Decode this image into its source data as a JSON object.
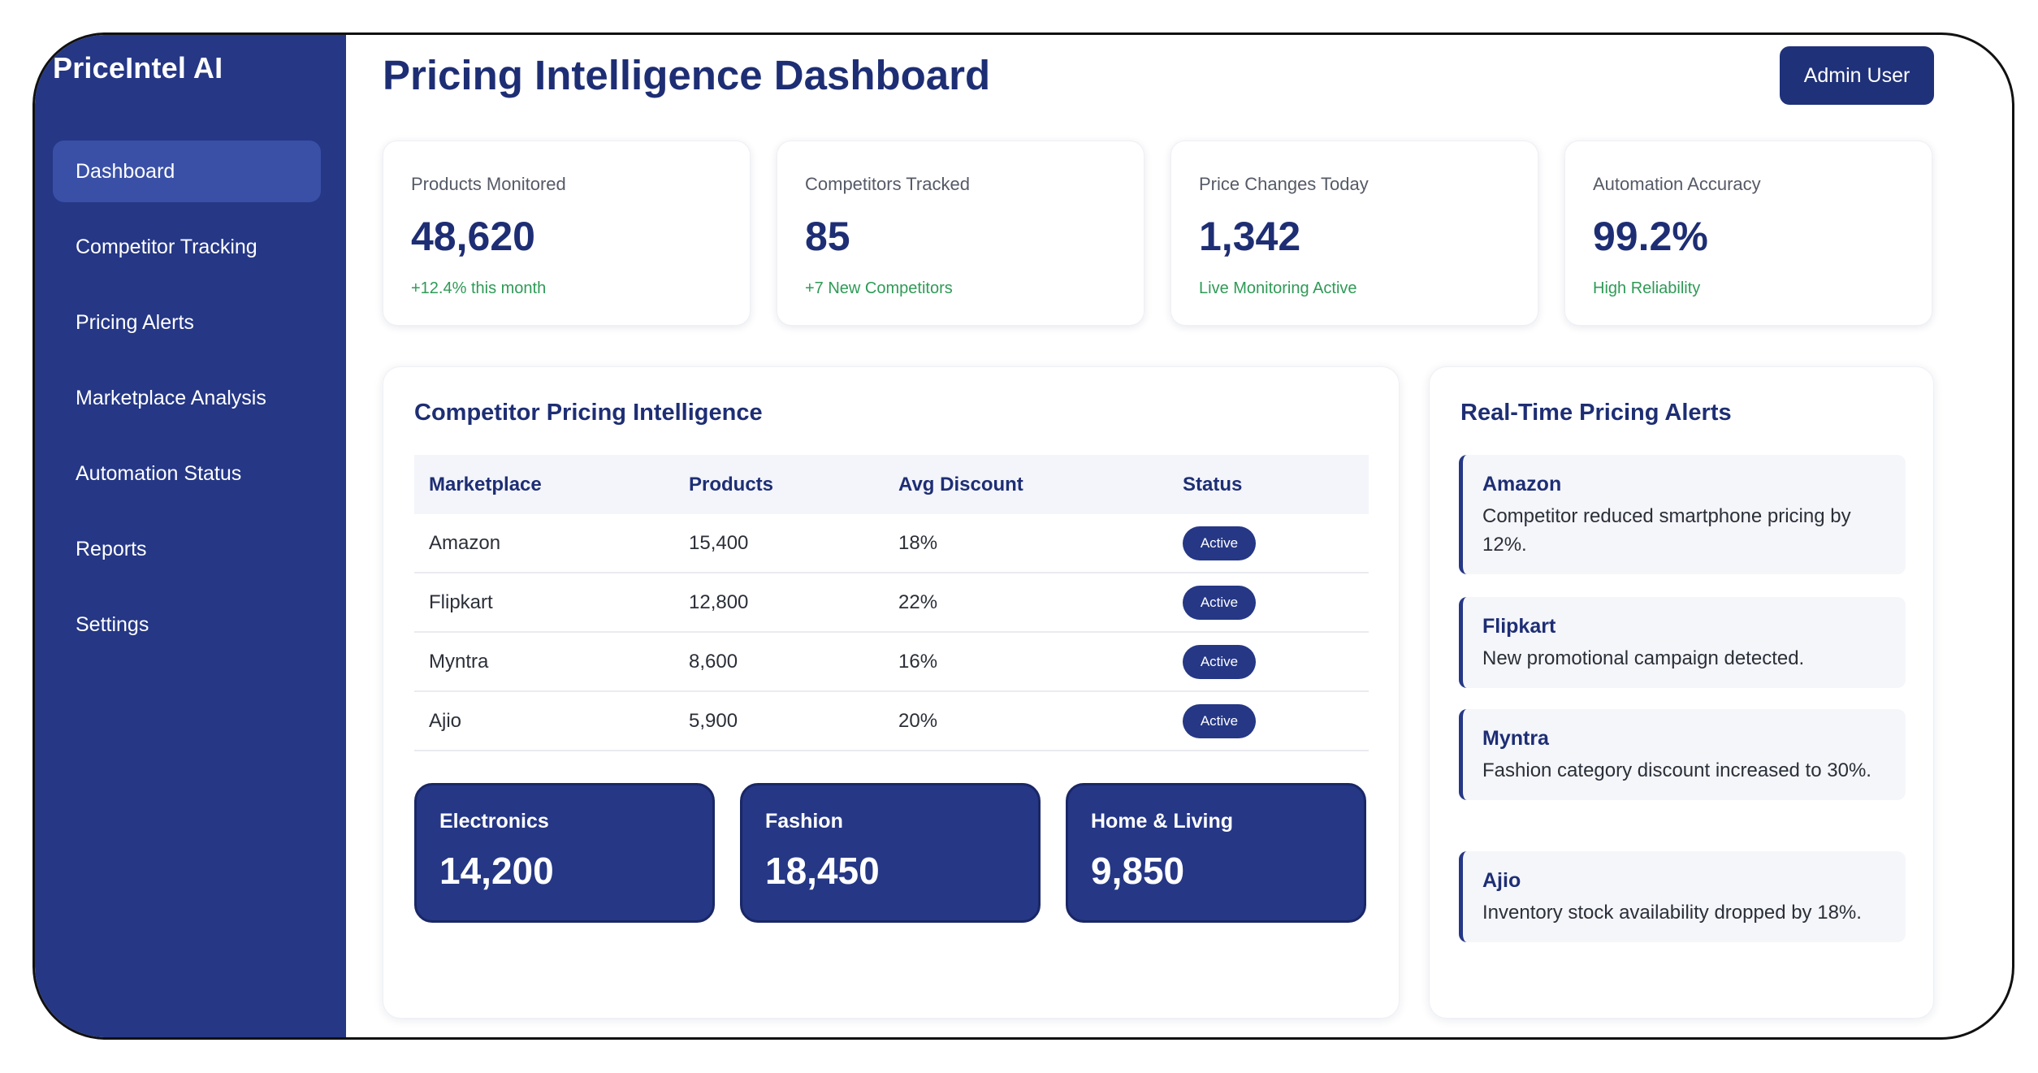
{
  "app": {
    "brand": "PriceIntel AI",
    "page_title": "Pricing Intelligence Dashboard",
    "user_button": "Admin User"
  },
  "sidebar": {
    "items": [
      {
        "label": "Dashboard",
        "active": true
      },
      {
        "label": "Competitor Tracking"
      },
      {
        "label": "Pricing Alerts"
      },
      {
        "label": "Marketplace Analysis"
      },
      {
        "label": "Automation Status"
      },
      {
        "label": "Reports"
      },
      {
        "label": "Settings"
      }
    ]
  },
  "stats": [
    {
      "label": "Products Monitored",
      "value": "48,620",
      "sub": "+12.4% this month"
    },
    {
      "label": "Competitors Tracked",
      "value": "85",
      "sub": "+7 New Competitors"
    },
    {
      "label": "Price Changes Today",
      "value": "1,342",
      "sub": "Live Monitoring Active"
    },
    {
      "label": "Automation Accuracy",
      "value": "99.2%",
      "sub": "High Reliability"
    }
  ],
  "competitor": {
    "title": "Competitor Pricing Intelligence",
    "headers": [
      "Marketplace",
      "Products",
      "Avg Discount",
      "Status"
    ],
    "rows": [
      {
        "marketplace": "Amazon",
        "products": "15,400",
        "discount": "18%",
        "status": "Active"
      },
      {
        "marketplace": "Flipkart",
        "products": "12,800",
        "discount": "22%",
        "status": "Active"
      },
      {
        "marketplace": "Myntra",
        "products": "8,600",
        "discount": "16%",
        "status": "Active"
      },
      {
        "marketplace": "Ajio",
        "products": "5,900",
        "discount": "20%",
        "status": "Active"
      }
    ],
    "categories": [
      {
        "label": "Electronics",
        "value": "14,200"
      },
      {
        "label": "Fashion",
        "value": "18,450"
      },
      {
        "label": "Home & Living",
        "value": "9,850"
      }
    ]
  },
  "alerts": {
    "title": "Real-Time Pricing Alerts",
    "items": [
      {
        "name": "Amazon",
        "message": "Competitor reduced smartphone pricing by 12%."
      },
      {
        "name": "Flipkart",
        "message": "New promotional campaign detected."
      },
      {
        "name": "Myntra",
        "message": "Fashion category discount increased to 30%."
      },
      {
        "name": "Ajio",
        "message": "Inventory stock availability dropped by 18%."
      }
    ]
  },
  "colors": {
    "primary": "#253785",
    "title": "#1e2e74",
    "positive": "#2f9a57"
  }
}
